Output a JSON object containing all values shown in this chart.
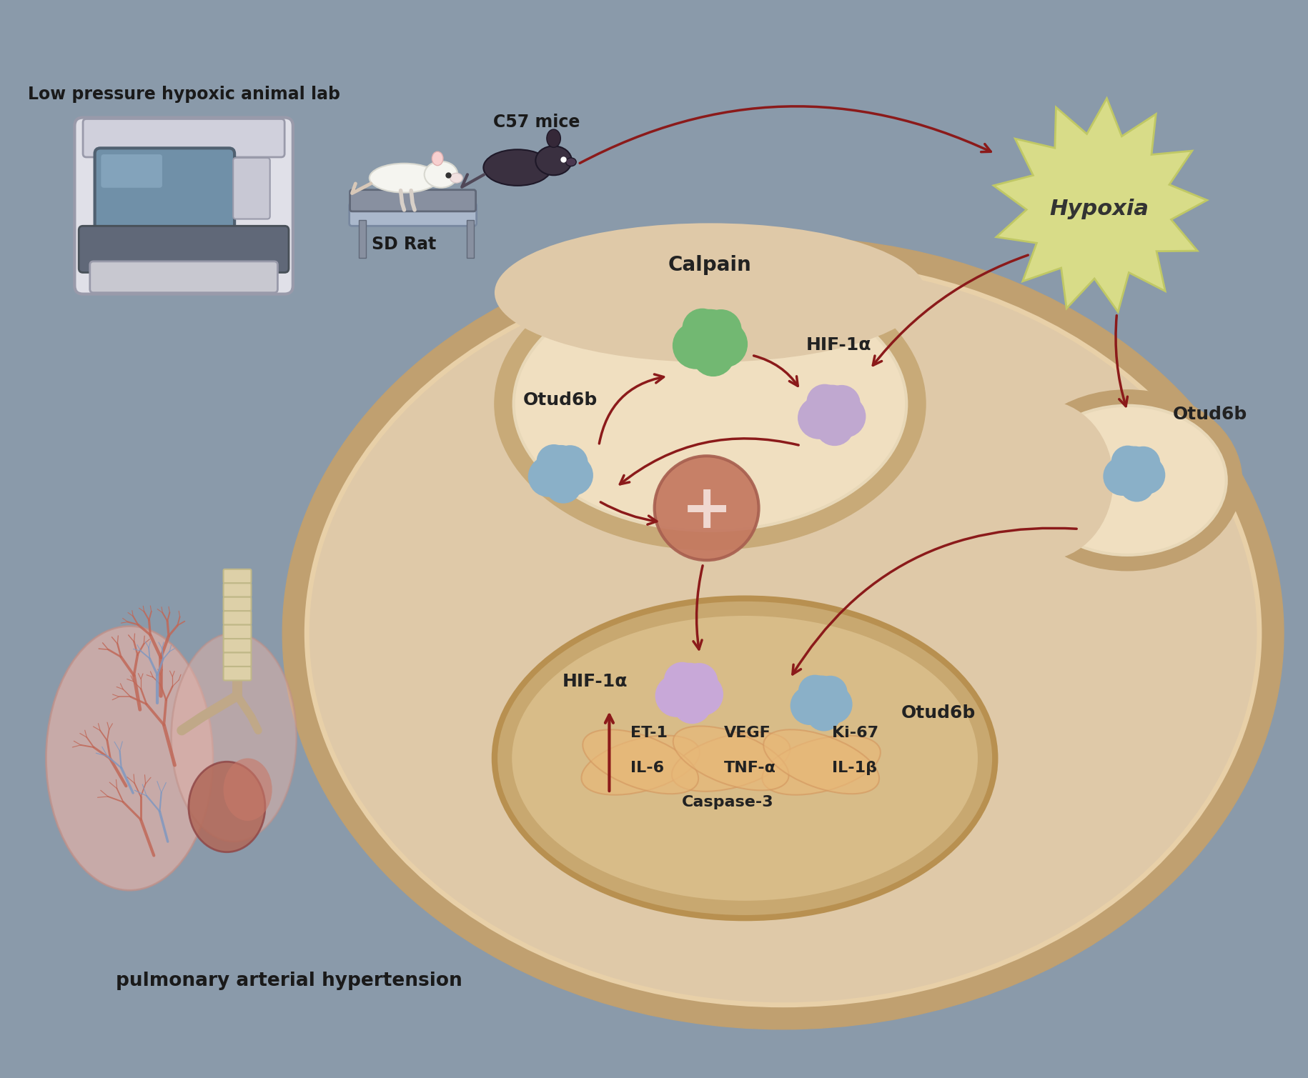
{
  "bg_color": "#8a9aaa",
  "cell_outer_color": "#c8a87a",
  "cell_inner_color": "#d4b896",
  "cell_cytoplasm_color": "#dfc9a8",
  "membrane_color": "#f0dfc0",
  "arrow_color": "#8b2020",
  "hypoxia_color": "#d8dc88",
  "calpain_color": "#6db56d",
  "otud6b_blue": "#8ab0c8",
  "hif1a_purple": "#c0a8d0",
  "plus_circle_color": "#c47860",
  "text_dark": "#1a1a1a",
  "label_top_left": "Low pressure hypoxic animal lab",
  "label_sd_rat": "SD Rat",
  "label_c57": "C57 mice",
  "label_hypoxia": "Hypoxia",
  "label_calpain": "Calpain",
  "label_hif1a_mem": "HIF-1α",
  "label_otud6b_left": "Otud6b",
  "label_otud6b_right": "Otud6b",
  "label_hif1a_nuc": "HIF-1α",
  "label_otud6b_nuc": "Otud6b",
  "label_et1": "ET-1",
  "label_vegf": "VEGF",
  "label_ki67": "Ki-67",
  "label_il6": "IL-6",
  "label_tnfa": "TNF-α",
  "label_il1b": "IL-1β",
  "label_caspase": "Caspase-3",
  "label_pah": "pulmonary arterial hypertension",
  "arrow_col": "#8b1a1a"
}
